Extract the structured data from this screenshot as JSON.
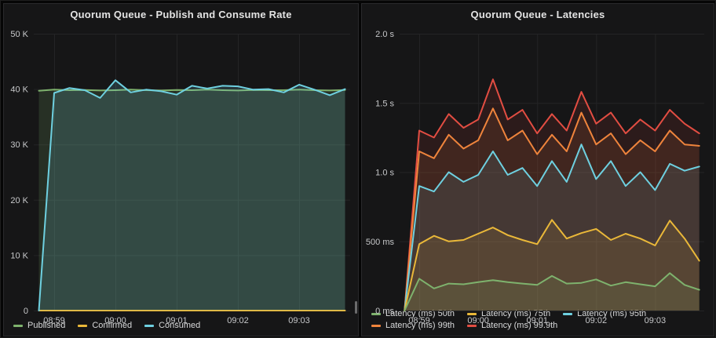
{
  "chart_data": [
    {
      "type": "line",
      "title": "Quorum Queue - Publish and Consume Rate",
      "xlabel": "",
      "ylabel": "",
      "xlim": [
        0,
        310
      ],
      "ylim": [
        0,
        50000
      ],
      "grid": true,
      "legend_position": "bottom",
      "x_ticks": [
        {
          "t": 20,
          "label": "08:59"
        },
        {
          "t": 80,
          "label": "09:00"
        },
        {
          "t": 140,
          "label": "09:01"
        },
        {
          "t": 200,
          "label": "09:02"
        },
        {
          "t": 260,
          "label": "09:03"
        }
      ],
      "y_ticks": [
        {
          "v": 0,
          "label": "0"
        },
        {
          "v": 10000,
          "label": "10 K"
        },
        {
          "v": 20000,
          "label": "20 K"
        },
        {
          "v": 30000,
          "label": "30 K"
        },
        {
          "v": 40000,
          "label": "40 K"
        },
        {
          "v": 50000,
          "label": "50 K"
        }
      ],
      "x": [
        5,
        20,
        35,
        50,
        65,
        80,
        95,
        110,
        125,
        140,
        155,
        170,
        185,
        200,
        215,
        230,
        245,
        260,
        275,
        290,
        305
      ],
      "draw_reverse": false,
      "series": [
        {
          "name": "Published",
          "color": "#7EB26D",
          "fill_opacity": 0.17,
          "values": [
            39700,
            39900,
            39800,
            39850,
            39750,
            39800,
            39900,
            39800,
            39750,
            39850,
            39800,
            39900,
            39800,
            39750,
            39850,
            39800,
            39800,
            39900,
            39800,
            39750,
            39850
          ]
        },
        {
          "name": "Confirmed",
          "color": "#EAB839",
          "fill_opacity": 0,
          "values": [
            0,
            0,
            0,
            0,
            0,
            0,
            0,
            0,
            0,
            0,
            0,
            0,
            0,
            0,
            0,
            0,
            0,
            0,
            0,
            0,
            0
          ]
        },
        {
          "name": "Consumed",
          "color": "#6ED0E0",
          "fill_opacity": 0.17,
          "values": [
            0,
            39300,
            40200,
            39800,
            38400,
            41600,
            39400,
            39900,
            39600,
            39000,
            40600,
            40100,
            40600,
            40500,
            39900,
            40000,
            39400,
            40800,
            39900,
            38900,
            40000
          ]
        }
      ]
    },
    {
      "type": "line",
      "title": "Quorum Queue - Latencies",
      "xlabel": "",
      "ylabel": "",
      "xlim": [
        0,
        310
      ],
      "ylim": [
        0,
        2000
      ],
      "grid": true,
      "legend_position": "bottom",
      "x_ticks": [
        {
          "t": 20,
          "label": "08:59"
        },
        {
          "t": 80,
          "label": "09:00"
        },
        {
          "t": 140,
          "label": "09:01"
        },
        {
          "t": 200,
          "label": "09:02"
        },
        {
          "t": 260,
          "label": "09:03"
        }
      ],
      "y_ticks": [
        {
          "v": 0,
          "label": "0 ms"
        },
        {
          "v": 500,
          "label": "500 ms"
        },
        {
          "v": 1000,
          "label": "1.0 s"
        },
        {
          "v": 1500,
          "label": "1.5 s"
        },
        {
          "v": 2000,
          "label": "2.0 s"
        }
      ],
      "x": [
        5,
        20,
        35,
        50,
        65,
        80,
        95,
        110,
        125,
        140,
        155,
        170,
        185,
        200,
        215,
        230,
        245,
        260,
        275,
        290,
        305
      ],
      "draw_reverse": true,
      "series": [
        {
          "name": "Latency (ms) 50th",
          "color": "#7EB26D",
          "fill_opacity": 0.11,
          "values": [
            0,
            230,
            160,
            195,
            190,
            205,
            220,
            205,
            195,
            185,
            250,
            195,
            200,
            225,
            180,
            205,
            190,
            175,
            270,
            185,
            150
          ]
        },
        {
          "name": "Latency (ms) 75th",
          "color": "#EAB839",
          "fill_opacity": 0.11,
          "values": [
            0,
            480,
            540,
            500,
            510,
            555,
            600,
            545,
            510,
            480,
            655,
            520,
            560,
            590,
            510,
            555,
            520,
            470,
            650,
            520,
            360
          ]
        },
        {
          "name": "Latency (ms) 95th",
          "color": "#6ED0E0",
          "fill_opacity": 0.11,
          "values": [
            0,
            900,
            860,
            1000,
            930,
            980,
            1150,
            980,
            1030,
            900,
            1080,
            930,
            1200,
            950,
            1080,
            900,
            1000,
            870,
            1060,
            1010,
            1040
          ]
        },
        {
          "name": "Latency (ms) 99th",
          "color": "#EF843C",
          "fill_opacity": 0.11,
          "values": [
            0,
            1150,
            1100,
            1270,
            1170,
            1230,
            1460,
            1230,
            1300,
            1130,
            1270,
            1150,
            1430,
            1200,
            1280,
            1130,
            1230,
            1150,
            1300,
            1200,
            1190
          ]
        },
        {
          "name": "Latency (ms) 99.9th",
          "color": "#E24D42",
          "fill_opacity": 0.11,
          "values": [
            0,
            1300,
            1250,
            1420,
            1320,
            1380,
            1670,
            1380,
            1450,
            1280,
            1420,
            1300,
            1580,
            1350,
            1430,
            1280,
            1380,
            1300,
            1450,
            1350,
            1280
          ]
        }
      ]
    }
  ],
  "theme": {
    "panel_bg": "#161617",
    "grid_color": "#242426",
    "tick_text_color": "#c7c8ca",
    "legend_text_color": "#d8d9da",
    "title_color": "#e3e3e3"
  }
}
